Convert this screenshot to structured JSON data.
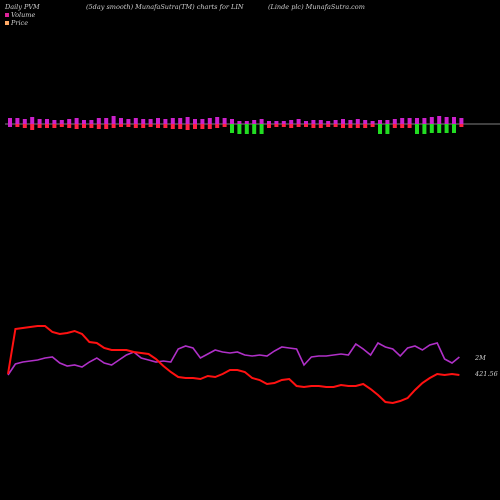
{
  "header": {
    "left": "Daily PVM",
    "center": "(5day smooth) MunafaSutra(TM) charts for LIN",
    "right": "(Linde  plc) MunafaSutra.com"
  },
  "legend": [
    {
      "label": "Volume",
      "color": "#dd2299"
    },
    {
      "label": "Price",
      "color": "#ffaa66"
    }
  ],
  "colors": {
    "background": "#000000",
    "bar_up": "#cc22cc",
    "bar_down": "#ff2244",
    "bar_green": "#22dd22",
    "baseline": "#aaaaaa",
    "price_line": "#ff1111",
    "volume_line": "#b030c8"
  },
  "chart_data": {
    "type": "bar+line",
    "bars": {
      "up": [
        6,
        6,
        5,
        7,
        5,
        5,
        4,
        4,
        5,
        6,
        4,
        4,
        6,
        6,
        8,
        6,
        5,
        6,
        5,
        5,
        6,
        5,
        6,
        6,
        7,
        5,
        5,
        6,
        7,
        6,
        5,
        3,
        3,
        4,
        5,
        3,
        3,
        3,
        4,
        5,
        3,
        4,
        4,
        3,
        4,
        5,
        4,
        5,
        4,
        3,
        4,
        4,
        5,
        6,
        6,
        6,
        6,
        7,
        8,
        7,
        7,
        6
      ],
      "down": [
        3,
        3,
        4,
        6,
        4,
        4,
        4,
        3,
        4,
        5,
        4,
        4,
        5,
        5,
        4,
        3,
        3,
        4,
        4,
        3,
        4,
        4,
        5,
        5,
        6,
        5,
        5,
        5,
        4,
        3,
        3,
        4,
        4,
        4,
        4,
        4,
        3,
        3,
        4,
        3,
        3,
        4,
        4,
        3,
        3,
        4,
        4,
        4,
        4,
        3,
        4,
        4,
        4,
        4,
        4,
        4,
        4,
        3,
        3,
        3,
        3,
        3
      ],
      "colors": [
        "up",
        "down",
        "down",
        "down",
        "down",
        "down",
        "down",
        "down",
        "down",
        "down",
        "down",
        "down",
        "down",
        "down",
        "down",
        "down",
        "down",
        "down",
        "down",
        "down",
        "down",
        "down",
        "down",
        "down",
        "down",
        "down",
        "down",
        "down",
        "down",
        "down",
        "green",
        "green",
        "green",
        "green",
        "green",
        "down",
        "down",
        "down",
        "down",
        "down",
        "down",
        "down",
        "down",
        "down",
        "down",
        "down",
        "down",
        "down",
        "down",
        "down",
        "green",
        "green",
        "down",
        "down",
        "down",
        "green",
        "green",
        "green",
        "green",
        "green",
        "green",
        "down"
      ]
    },
    "price_line": [
      374,
      329,
      328,
      327,
      326,
      326,
      332,
      334,
      333,
      331,
      334,
      342,
      343,
      348,
      350,
      350,
      350,
      352,
      353,
      354,
      359,
      366,
      372,
      377,
      378,
      378,
      379,
      376,
      377,
      374,
      370,
      370,
      372,
      378,
      380,
      384,
      383,
      380,
      379,
      386,
      387,
      386,
      386,
      387,
      387,
      385,
      386,
      386,
      384,
      389,
      395,
      402,
      403,
      401,
      398,
      390,
      383,
      378,
      374,
      375,
      374,
      375
    ],
    "volume_line": [
      375,
      364,
      362,
      361,
      360,
      358,
      357,
      363,
      366,
      365,
      367,
      362,
      358,
      363,
      365,
      360,
      355,
      352,
      358,
      360,
      362,
      361,
      362,
      349,
      346,
      348,
      358,
      354,
      350,
      352,
      353,
      352,
      355,
      356,
      355,
      356,
      351,
      347,
      348,
      349,
      365,
      357,
      356,
      356,
      355,
      354,
      355,
      344,
      349,
      355,
      343,
      347,
      349,
      356,
      348,
      346,
      350,
      345,
      343,
      359,
      363,
      357
    ],
    "volume_end_label": "2M",
    "price_end_label": "421.56"
  }
}
